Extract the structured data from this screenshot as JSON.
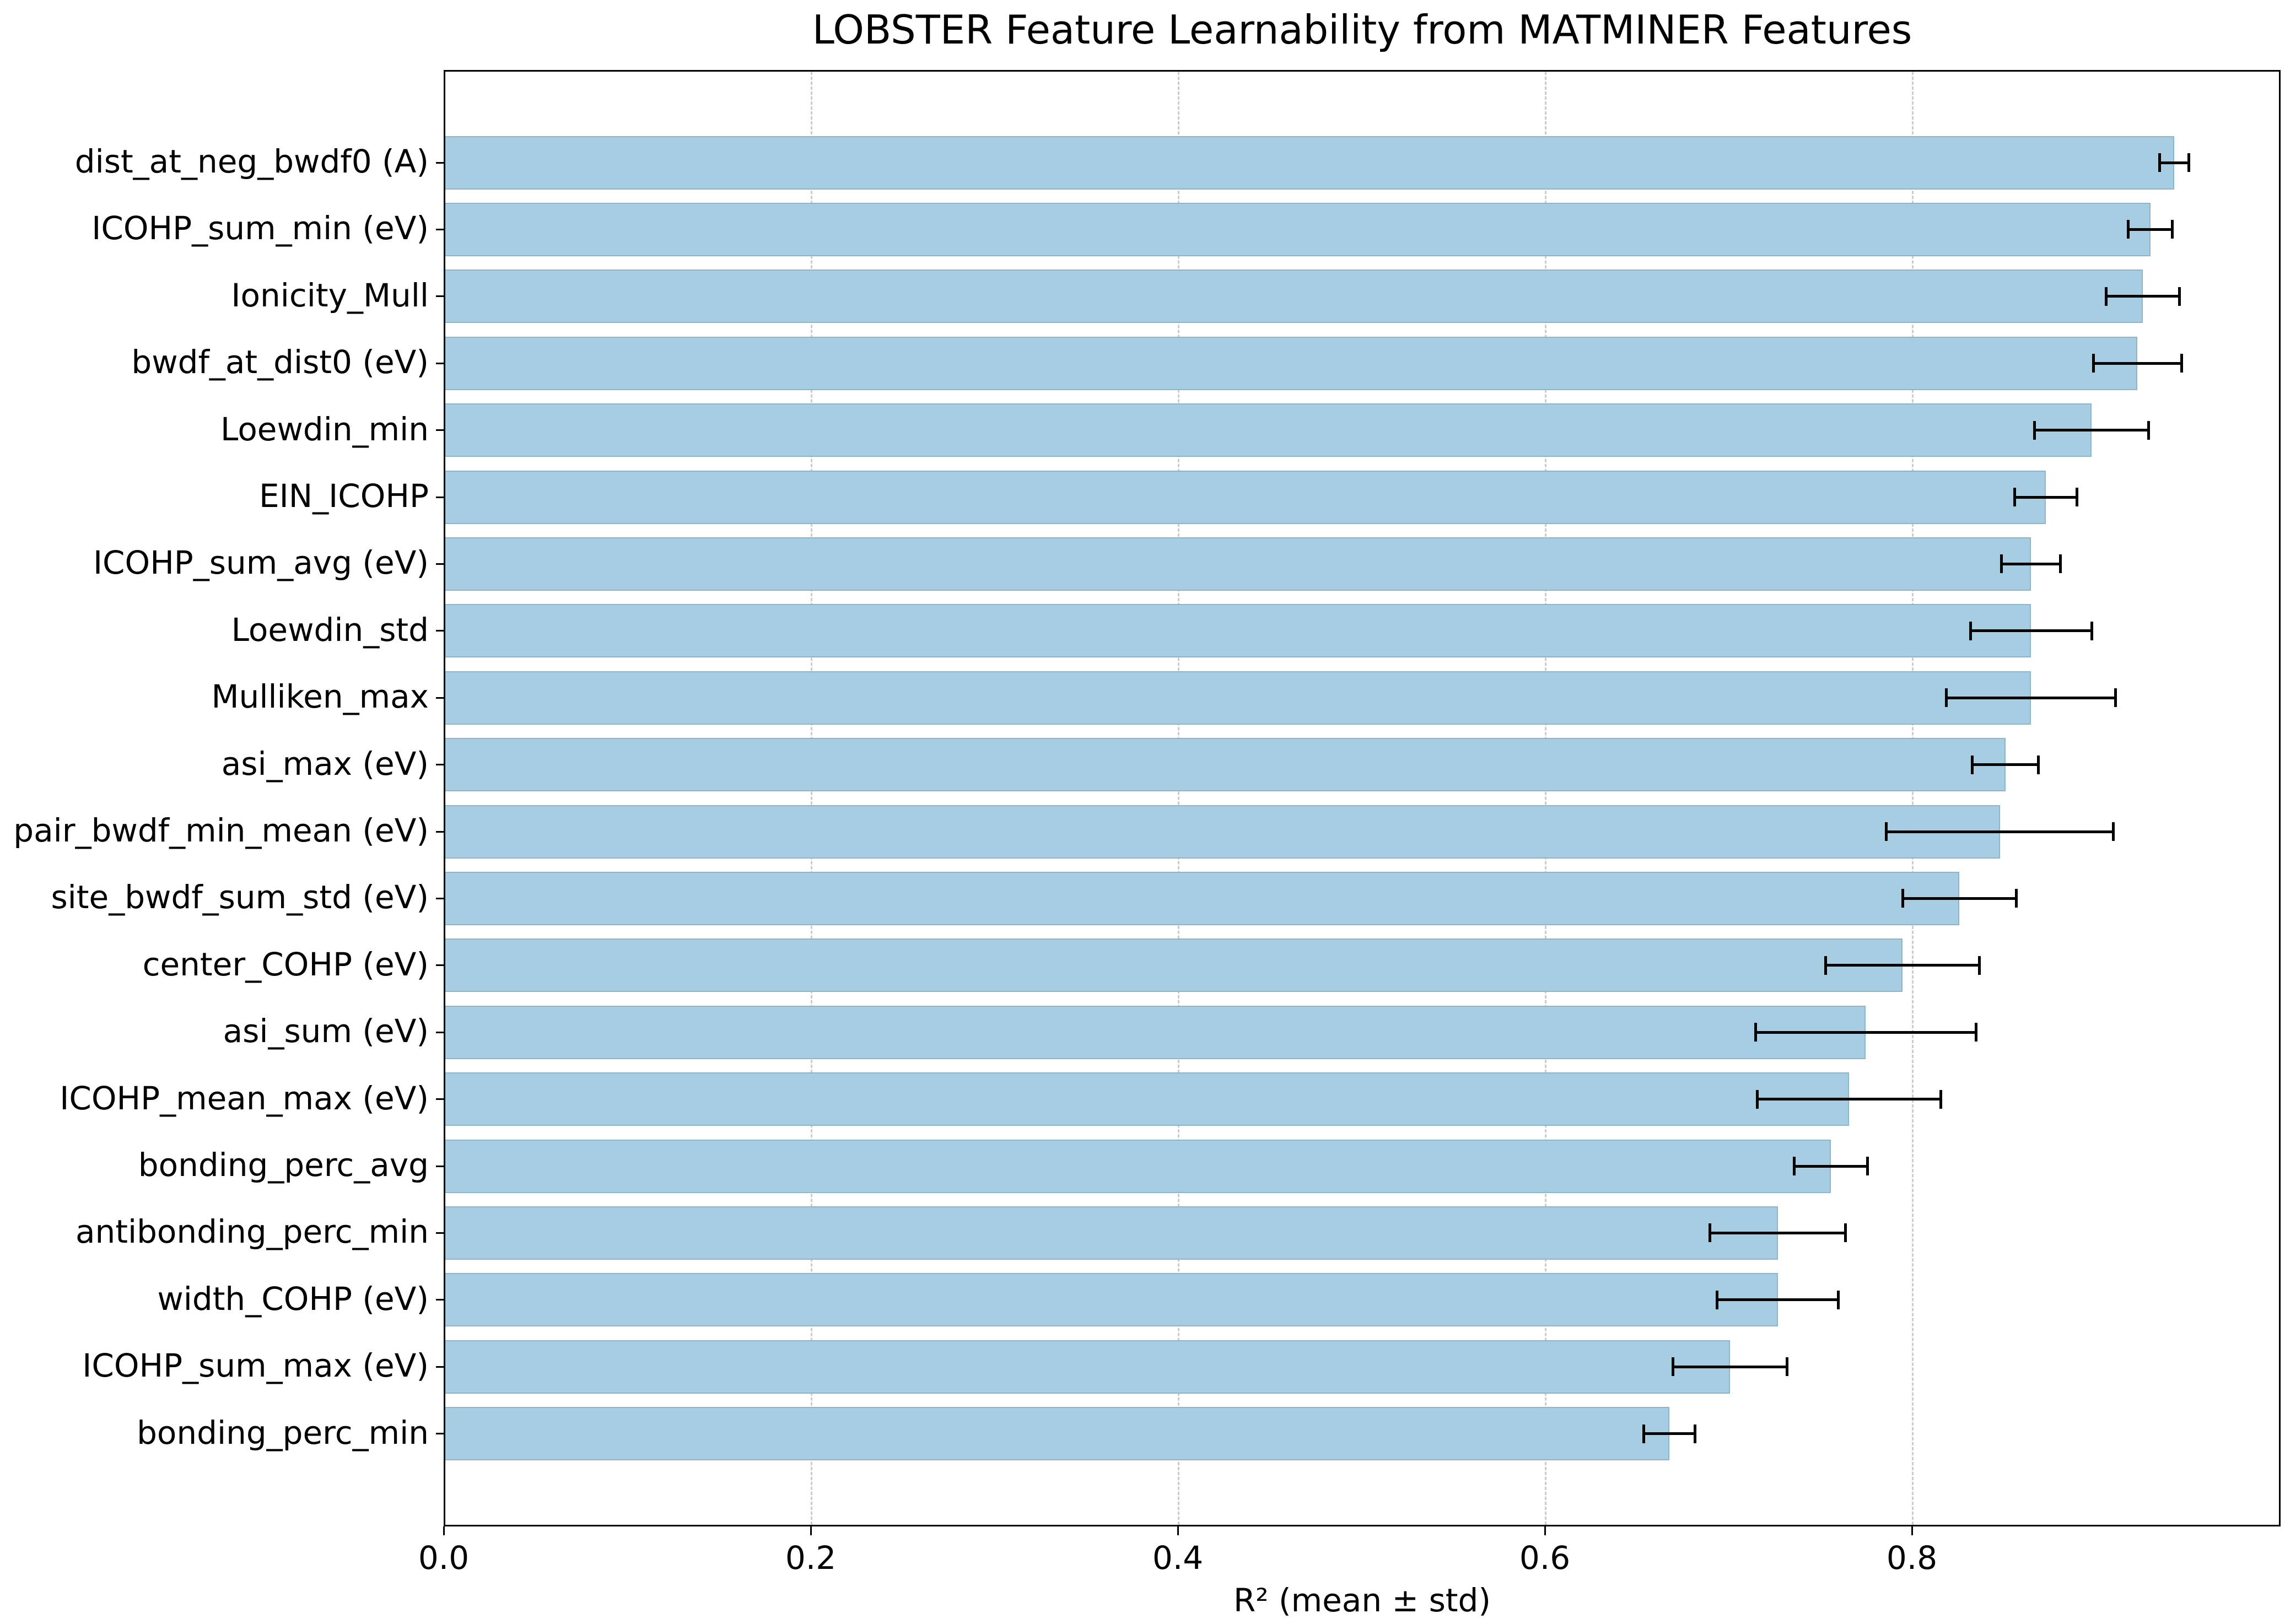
{
  "chart_data": {
    "type": "bar",
    "orientation": "horizontal",
    "title": "LOBSTER Feature Learnability from MATMINER Features",
    "xlabel": "R² (mean ± std)",
    "ylabel": "",
    "xlim": [
      0,
      1.0
    ],
    "xticks": [
      "0.0",
      "0.2",
      "0.4",
      "0.6",
      "0.8"
    ],
    "xtick_values": [
      0.0,
      0.2,
      0.4,
      0.6,
      0.8
    ],
    "grid": {
      "x": true,
      "y": false,
      "style": "dashed"
    },
    "bar_color": "#a6cde2",
    "error_color": "#000000",
    "categories": [
      "dist_at_neg_bwdf0 (A)",
      "ICOHP_sum_min (eV)",
      "Ionicity_Mull",
      "bwdf_at_dist0 (eV)",
      "Loewdin_min",
      "EIN_ICOHP",
      "ICOHP_sum_avg (eV)",
      "Loewdin_std",
      "Mulliken_max",
      "asi_max (eV)",
      "pair_bwdf_min_mean (eV)",
      "site_bwdf_sum_std (eV)",
      "center_COHP (eV)",
      "asi_sum (eV)",
      "ICOHP_mean_max (eV)",
      "bonding_perc_avg",
      "antibonding_perc_min",
      "width_COHP (eV)",
      "ICOHP_sum_max (eV)",
      "bonding_perc_min"
    ],
    "values": [
      0.942,
      0.929,
      0.925,
      0.922,
      0.897,
      0.872,
      0.864,
      0.864,
      0.864,
      0.85,
      0.847,
      0.825,
      0.794,
      0.774,
      0.765,
      0.755,
      0.726,
      0.726,
      0.7,
      0.667
    ],
    "errors": [
      0.008,
      0.012,
      0.02,
      0.024,
      0.031,
      0.017,
      0.016,
      0.033,
      0.046,
      0.018,
      0.062,
      0.031,
      0.042,
      0.06,
      0.05,
      0.02,
      0.037,
      0.033,
      0.031,
      0.014
    ]
  }
}
